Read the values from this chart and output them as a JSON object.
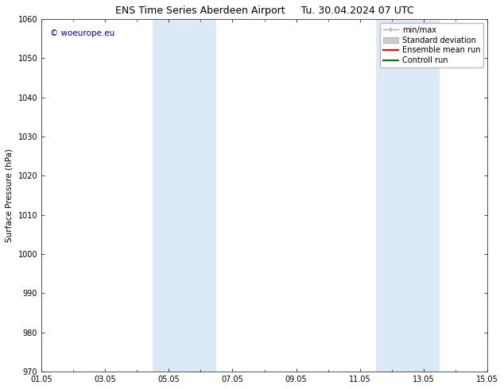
{
  "title_left": "ENS Time Series Aberdeen Airport",
  "title_right": "Tu. 30.04.2024 07 UTC",
  "ylabel": "Surface Pressure (hPa)",
  "ylim": [
    970,
    1060
  ],
  "yticks": [
    970,
    980,
    990,
    1000,
    1010,
    1020,
    1030,
    1040,
    1050,
    1060
  ],
  "x_start_days": 0,
  "x_end_days": 14,
  "xtick_labels": [
    "01.05",
    "03.05",
    "05.05",
    "07.05",
    "09.05",
    "11.05",
    "13.05",
    "15.05"
  ],
  "xtick_positions": [
    0,
    2,
    4,
    6,
    8,
    10,
    12,
    14
  ],
  "shaded_bands": [
    {
      "x_start": 3.5,
      "x_end": 4.5,
      "color": "#daeaf7",
      "alpha": 1.0
    },
    {
      "x_start": 4.5,
      "x_end": 5.5,
      "color": "#daeaf7",
      "alpha": 1.0
    },
    {
      "x_start": 10.5,
      "x_end": 11.5,
      "color": "#daeaf7",
      "alpha": 1.0
    },
    {
      "x_start": 11.5,
      "x_end": 12.5,
      "color": "#daeaf7",
      "alpha": 1.0
    }
  ],
  "watermark_text": "© woeurope.eu",
  "watermark_color": "#0000bb",
  "watermark_fontsize": 7.5,
  "legend_items": [
    {
      "label": "min/max",
      "color": "#aaaaaa",
      "type": "minmax"
    },
    {
      "label": "Standard deviation",
      "color": "#cccccc",
      "type": "fill"
    },
    {
      "label": "Ensemble mean run",
      "color": "#ff0000",
      "type": "line"
    },
    {
      "label": "Controll run",
      "color": "#008000",
      "type": "line"
    }
  ],
  "background_color": "#ffffff",
  "plot_bg_color": "#ffffff",
  "title_fontsize": 9,
  "axis_label_fontsize": 7.5,
  "tick_fontsize": 7,
  "legend_fontsize": 7
}
